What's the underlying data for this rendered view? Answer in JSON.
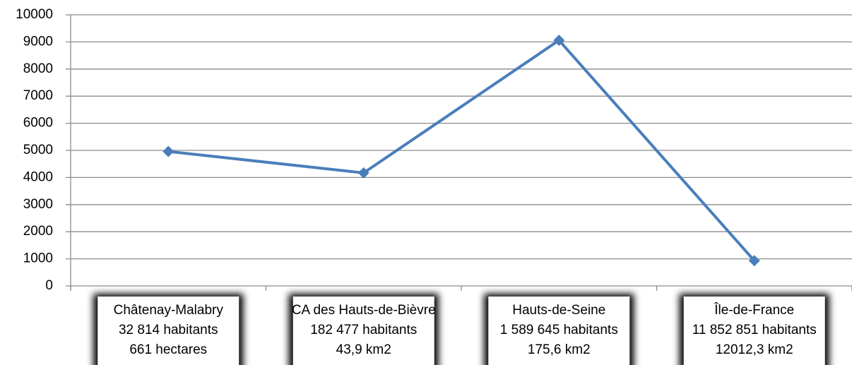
{
  "chart_data": {
    "type": "line",
    "categories": [
      [
        "Châtenay-Malabry",
        "32 814 habitants",
        "661 hectares"
      ],
      [
        "CA des Hauts-de-Bièvre",
        "182 477 habitants",
        "43,9 km2"
      ],
      [
        "Hauts-de-Seine",
        "1 589 645 habitants",
        "175,6 km2"
      ],
      [
        "Île-de-France",
        "11 852 851 habitants",
        "12012,3 km2"
      ]
    ],
    "series": [
      {
        "color": "#4a7ebb",
        "values": [
          4960,
          4170,
          9060,
          930
        ]
      }
    ],
    "ylim": [
      0,
      10000
    ],
    "yticks": [
      0,
      1000,
      2000,
      3000,
      4000,
      5000,
      6000,
      7000,
      8000,
      9000,
      10000
    ],
    "grid": true
  }
}
